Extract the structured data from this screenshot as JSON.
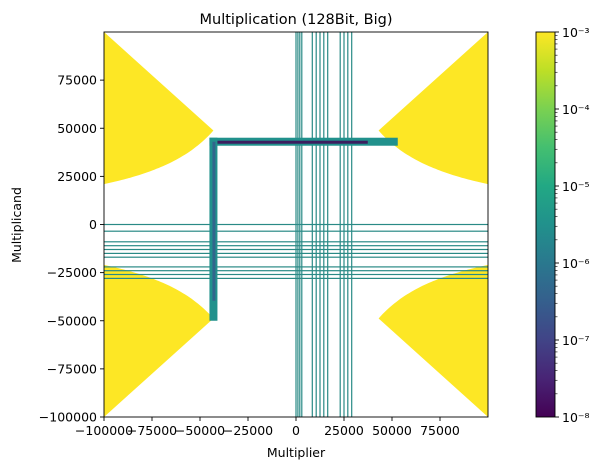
{
  "chart_data": {
    "type": "heatmap",
    "title": "Multiplication (128Bit, Big)",
    "xlabel": "Multiplier",
    "ylabel": "Multiplicand",
    "xlim": [
      -100000,
      100000
    ],
    "ylim": [
      -100000,
      100000
    ],
    "x_ticks": [
      -100000,
      -75000,
      -50000,
      -25000,
      0,
      25000,
      50000,
      75000
    ],
    "x_tick_labels": [
      "−100000",
      "−75000",
      "−50000",
      "−25000",
      "0",
      "25000",
      "50000",
      "75000"
    ],
    "y_ticks": [
      -100000,
      -75000,
      -50000,
      -25000,
      0,
      25000,
      50000,
      75000
    ],
    "y_tick_labels": [
      "−100000",
      "−75000",
      "−50000",
      "−25000",
      "0",
      "25000",
      "50000",
      "75000"
    ],
    "colorbar": {
      "scale": "log",
      "colormap": "viridis",
      "range": [
        1e-08,
        0.001
      ],
      "ticks": [
        1e-08,
        1e-07,
        1e-06,
        1e-05,
        0.0001,
        0.001
      ],
      "tick_labels": [
        "10⁻⁸",
        "10⁻⁷",
        "10⁻⁶",
        "10⁻⁵",
        "10⁻⁴",
        "10⁻³"
      ]
    },
    "saturated_regions": {
      "description_value": 0.001,
      "product_threshold_abs": 2100000000,
      "corner_blocks": [
        [
          -100000,
          -43000
        ],
        [
          43000,
          100000
        ]
      ]
    },
    "vertical_stripes": {
      "x_values": [
        0,
        1000,
        2000,
        3000,
        8500,
        10500,
        12500,
        14500,
        16500,
        23000,
        25000,
        27000,
        29000
      ],
      "y_range": [
        -100000,
        100000
      ],
      "value": 2e-06
    },
    "horizontal_stripes": {
      "y_values": [
        0,
        -3500,
        -9000,
        -11000,
        -13000,
        -15000,
        -17000,
        -22000,
        -24000,
        -26000,
        -28000
      ],
      "x_range": [
        -100000,
        100000
      ],
      "value": 2e-06
    },
    "bracket": {
      "x": -43000,
      "y": 43000,
      "x_end": 53000,
      "y_end": -50000,
      "value_low": 1e-08,
      "value_high": 3e-06
    },
    "colors": {
      "yellow": "#fde725",
      "teal": "#21918c",
      "dark_purple": "#440154",
      "line_teal": "#2a8a86"
    }
  }
}
